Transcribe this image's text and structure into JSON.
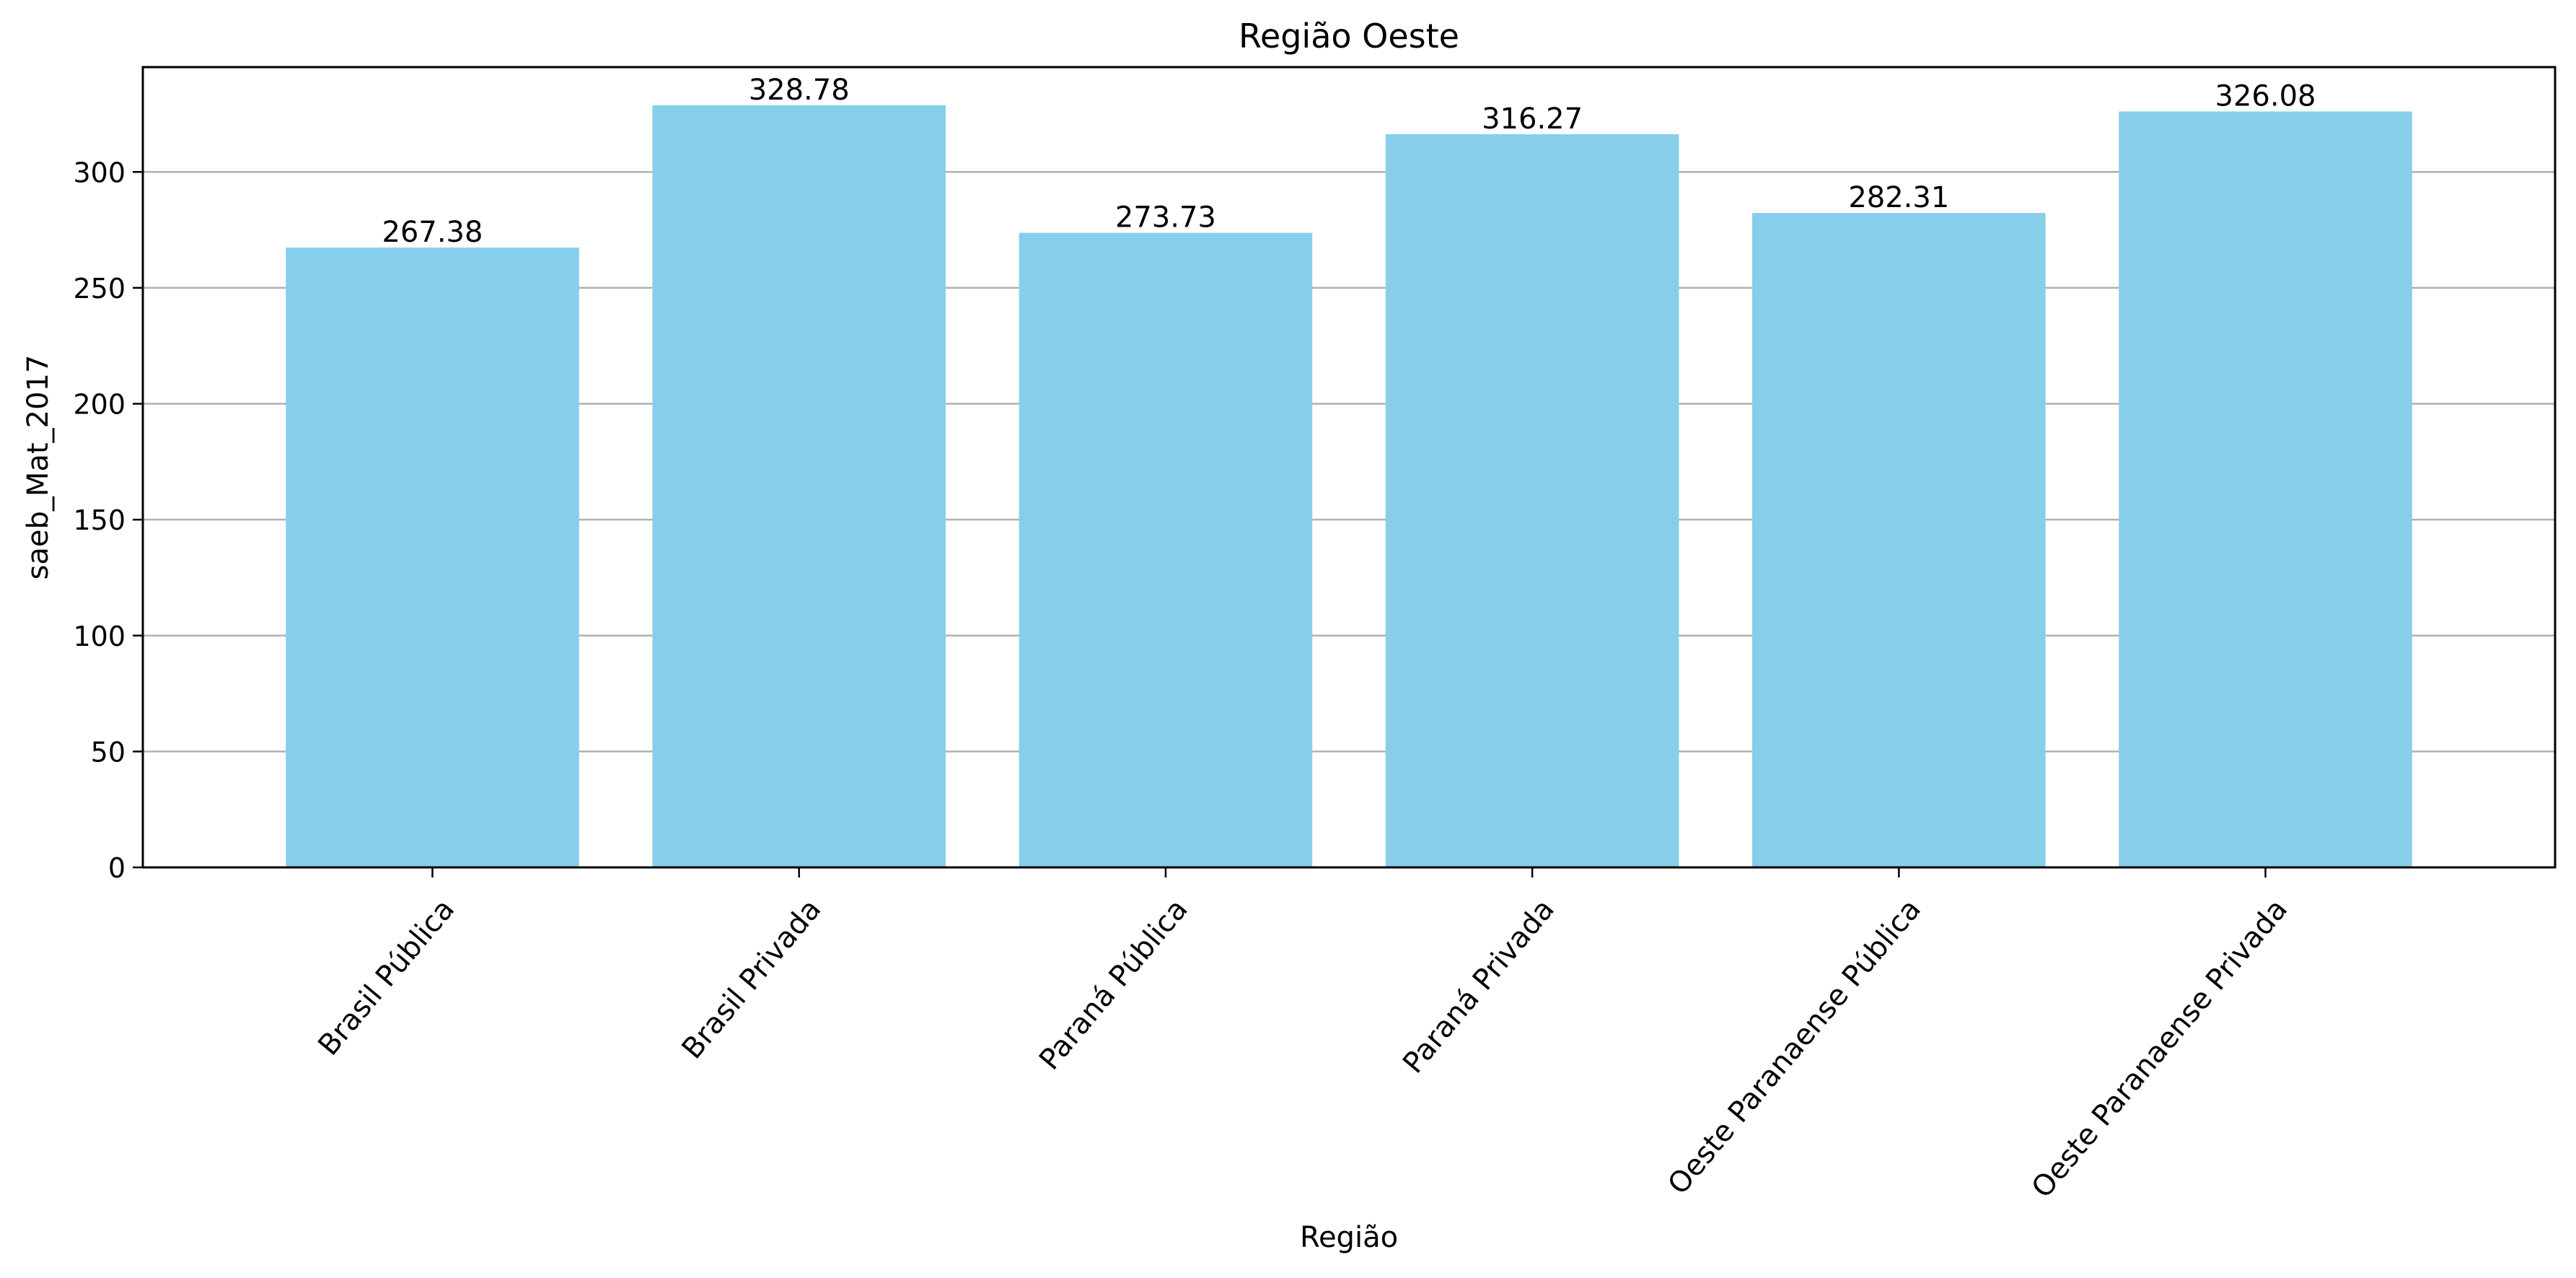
{
  "chart_data": {
    "type": "bar",
    "title": "Região Oeste",
    "xlabel": "Região",
    "ylabel": "saeb_Mat_2017",
    "categories": [
      "Brasil Pública",
      "Brasil Privada",
      "Paraná Pública",
      "Paraná Privada",
      "Oeste Paranaense Pública",
      "Oeste Paranaense Privada"
    ],
    "values": [
      267.38,
      328.78,
      273.73,
      316.27,
      282.31,
      326.08
    ],
    "value_labels": [
      "267.38",
      "328.78",
      "273.73",
      "316.27",
      "282.31",
      "326.08"
    ],
    "ylim": [
      0,
      345.22
    ],
    "yticks": [
      0,
      50,
      100,
      150,
      200,
      250,
      300
    ],
    "grid": "y",
    "legend": "none",
    "colors": {
      "bar": "#87ceeb",
      "grid": "#b0b0b0",
      "axis": "#000000"
    }
  }
}
